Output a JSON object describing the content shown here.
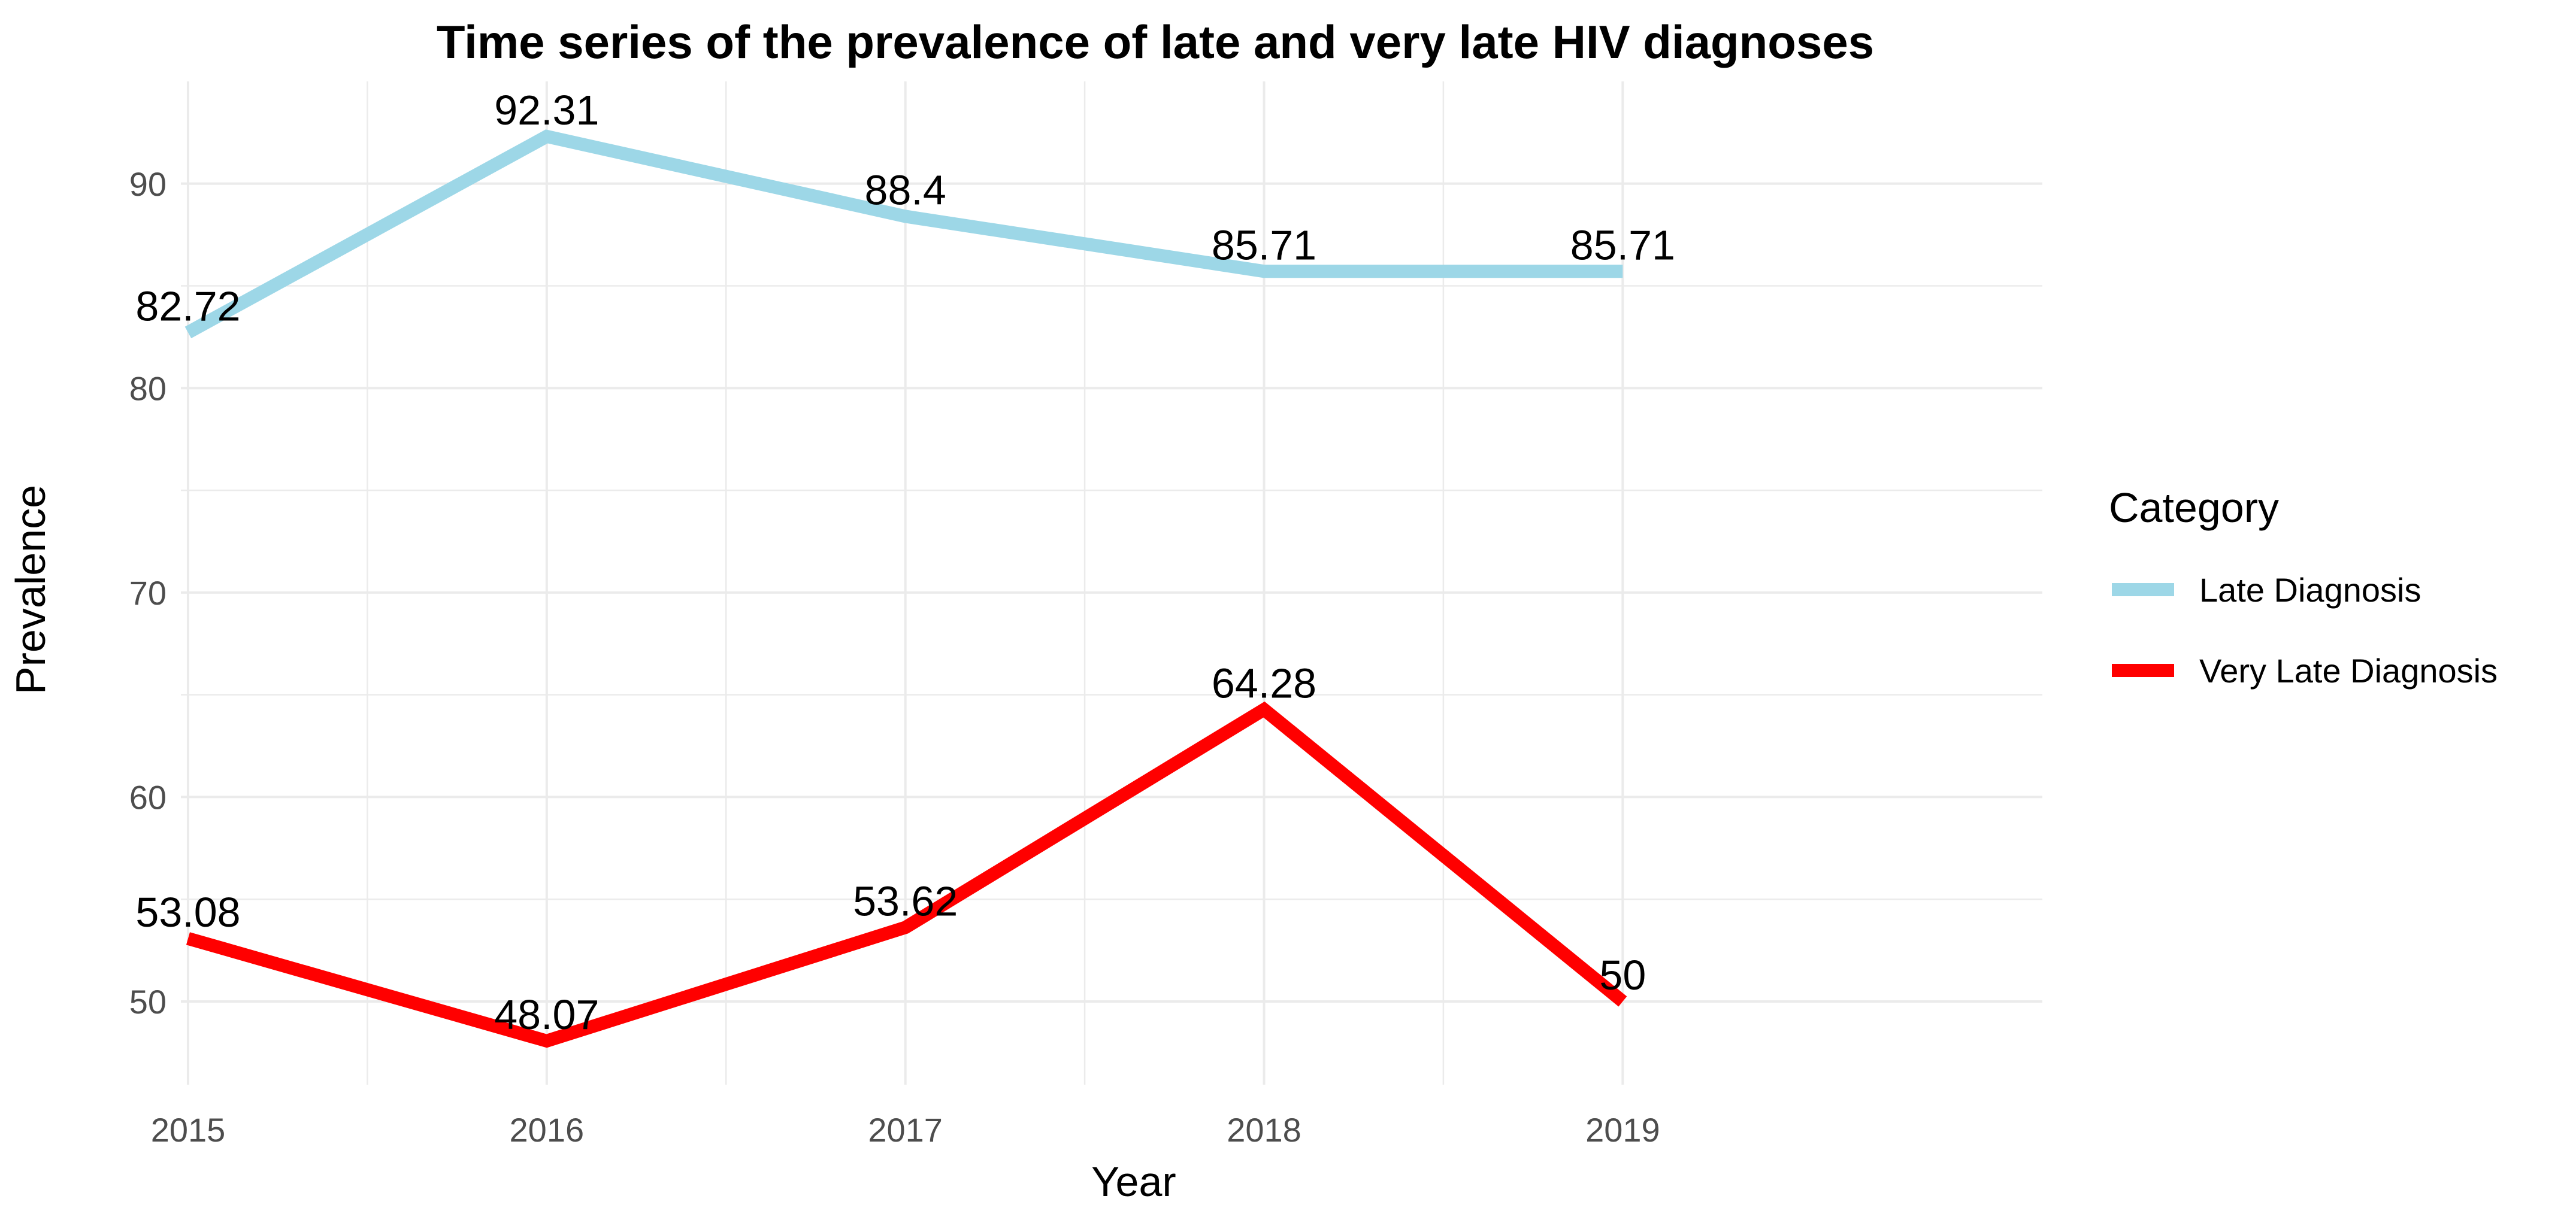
{
  "chart_data": {
    "type": "line",
    "title": "Time series of the prevalence of late and very late HIV diagnoses",
    "xlabel": "Year",
    "ylabel": "Prevalence",
    "x": [
      2015,
      2016,
      2017,
      2018,
      2019
    ],
    "x_tick_labels": [
      "2015",
      "2016",
      "2017",
      "2018",
      "2019"
    ],
    "y_ticks": [
      50,
      60,
      70,
      80,
      90
    ],
    "y_tick_labels": [
      "50",
      "60",
      "70",
      "80",
      "90"
    ],
    "xlim": [
      2014.98,
      2020.17
    ],
    "ylim": [
      45.93,
      95.0
    ],
    "grid": true,
    "legend": {
      "title": "Category",
      "placement": "right"
    },
    "series": [
      {
        "name": "Late Diagnosis",
        "color": "#9dd7e7",
        "values": [
          82.72,
          92.31,
          88.4,
          85.71,
          85.71
        ],
        "labels": [
          "82.72",
          "92.31",
          "88.4",
          "85.71",
          "85.71"
        ]
      },
      {
        "name": "Very Late Diagnosis",
        "color": "#ff0000",
        "values": [
          53.08,
          48.07,
          53.62,
          64.28,
          50
        ],
        "labels": [
          "53.08",
          "48.07",
          "53.62",
          "64.28",
          "50"
        ]
      }
    ]
  }
}
